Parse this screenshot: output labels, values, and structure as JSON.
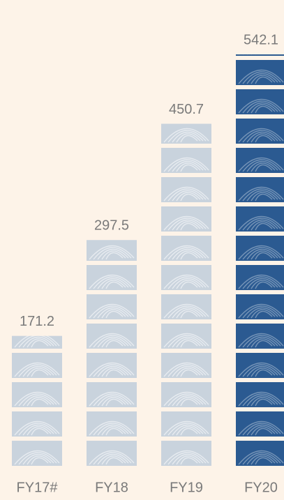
{
  "chart_data": {
    "type": "bar",
    "categories": [
      "FY17#",
      "FY18",
      "FY19",
      "FY20"
    ],
    "values": [
      171.2,
      297.5,
      450.7,
      542.1
    ],
    "colors": [
      "#c9d3dd",
      "#c9d3dd",
      "#c9d3dd",
      "#2b5a91"
    ],
    "ylim": [
      0,
      542.1
    ]
  }
}
